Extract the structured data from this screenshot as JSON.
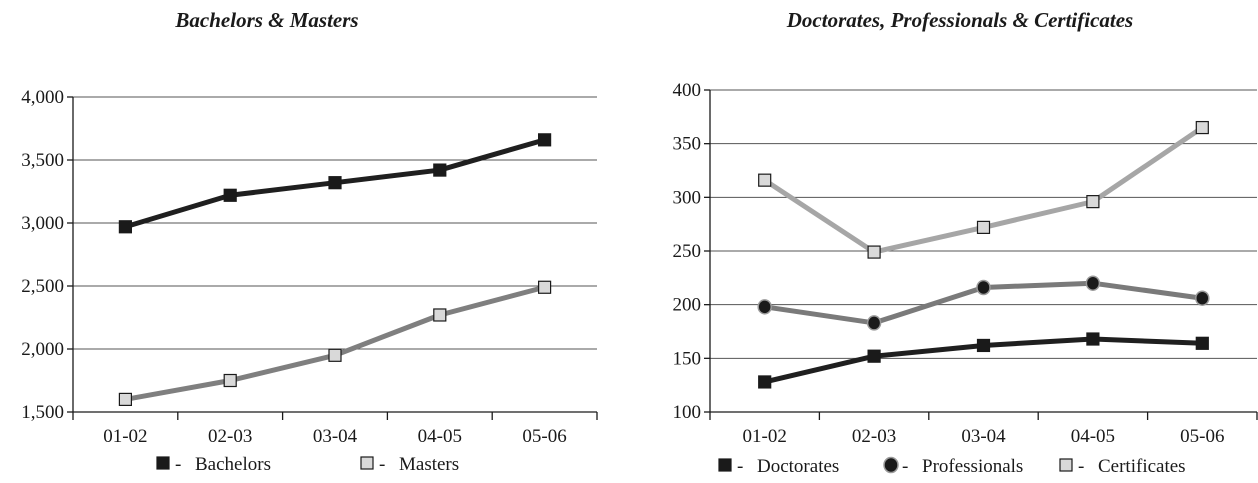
{
  "chart_data": [
    {
      "type": "line",
      "title": "Bachelors & Masters",
      "categories": [
        "01-02",
        "02-03",
        "03-04",
        "04-05",
        "05-06"
      ],
      "ylim": [
        1500,
        4000
      ],
      "yticks": [
        1500,
        2000,
        2500,
        3000,
        3500,
        4000
      ],
      "ytick_labels": [
        "1,500",
        "2,000",
        "2,500",
        "3,000",
        "3,500",
        "4,000"
      ],
      "grid": true,
      "legend_position": "bottom",
      "series": [
        {
          "name": "Bachelors",
          "values": [
            2970,
            3220,
            3320,
            3420,
            3660
          ],
          "line_color": "#1f1f1f",
          "marker": "square",
          "marker_fill": "#1a1a1a"
        },
        {
          "name": "Masters",
          "values": [
            1600,
            1750,
            1950,
            2270,
            2490
          ],
          "line_color": "#7f7f7f",
          "marker": "square",
          "marker_fill": "#d9d9d9"
        }
      ],
      "legend_separator": "-"
    },
    {
      "type": "line",
      "title": "Doctorates, Professionals & Certificates",
      "categories": [
        "01-02",
        "02-03",
        "03-04",
        "04-05",
        "05-06"
      ],
      "ylim": [
        100,
        400
      ],
      "yticks": [
        100,
        150,
        200,
        250,
        300,
        350,
        400
      ],
      "ytick_labels": [
        "100",
        "150",
        "200",
        "250",
        "300",
        "350",
        "400"
      ],
      "grid": true,
      "legend_position": "bottom",
      "series": [
        {
          "name": "Doctorates",
          "values": [
            128,
            152,
            162,
            168,
            164
          ],
          "line_color": "#1f1f1f",
          "marker": "square",
          "marker_fill": "#1a1a1a"
        },
        {
          "name": "Professionals",
          "values": [
            198,
            183,
            216,
            220,
            206
          ],
          "line_color": "#7a7a7a",
          "marker": "circle",
          "marker_fill": "#1a1a1a"
        },
        {
          "name": "Certificates",
          "values": [
            316,
            249,
            272,
            296,
            365
          ],
          "line_color": "#a6a6a6",
          "marker": "square",
          "marker_fill": "#d9d9d9"
        }
      ],
      "legend_separator": "-"
    }
  ]
}
